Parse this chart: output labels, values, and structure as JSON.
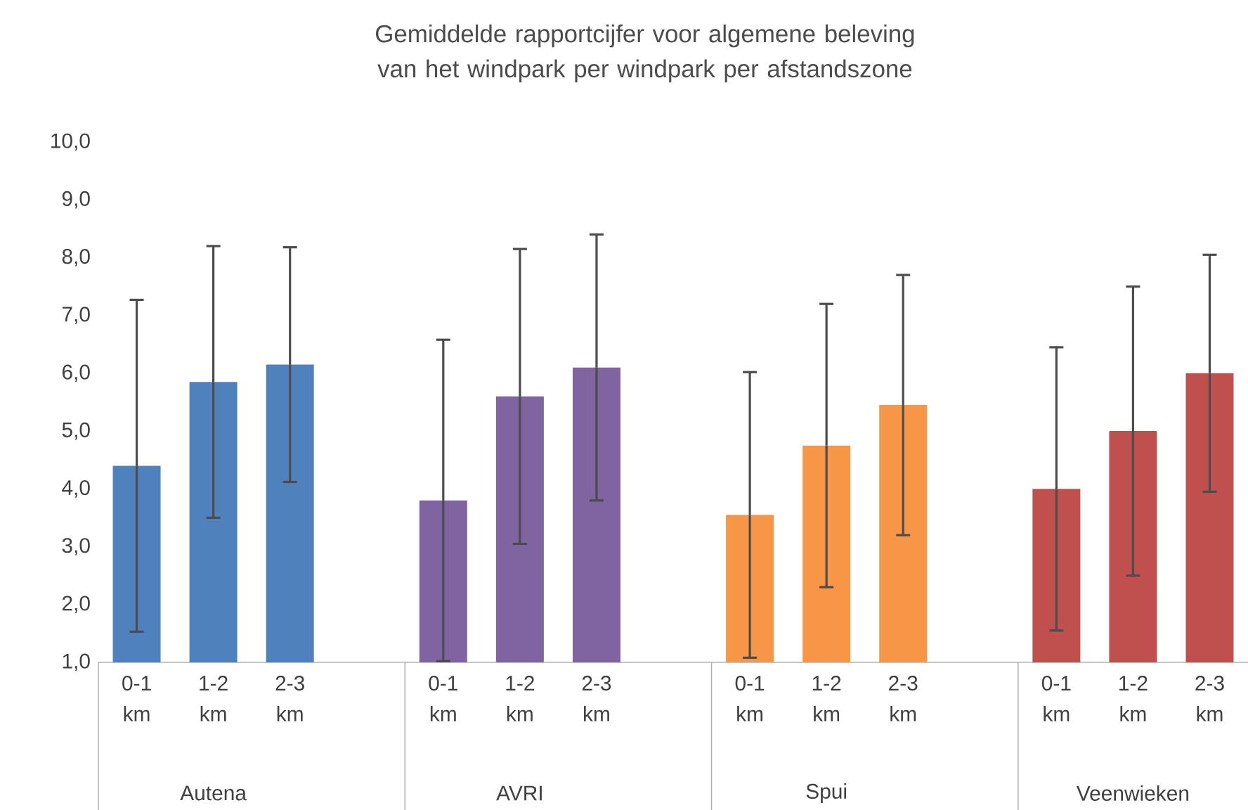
{
  "chart_data": {
    "type": "bar",
    "title": "Gemiddelde rapportcijfer voor algemene beleving van het windpark per windpark per afstandszone",
    "categories": [
      "0-1 km",
      "1-2 km",
      "2-3 km",
      null,
      "0-1 km",
      "1-2 km",
      "2-3 km",
      null,
      "0-1 km",
      "1-2 km",
      "2-3 km",
      null,
      "0-1 km",
      "1-2 km",
      "2-3 km"
    ],
    "series": [
      {
        "color": "#4f81bd",
        "values": [
          4.4,
          5.85,
          6.15,
          null,
          null,
          null,
          null,
          null,
          null,
          null,
          null,
          null,
          null,
          null,
          null
        ],
        "errors": [
          2.87,
          2.35,
          2.03,
          null,
          null,
          null,
          null,
          null,
          null,
          null,
          null,
          null,
          null,
          null,
          null
        ]
      },
      {
        "color": "#8064a2",
        "values": [
          null,
          null,
          null,
          null,
          3.8,
          5.6,
          6.1,
          null,
          null,
          null,
          null,
          null,
          null,
          null,
          null
        ],
        "errors": [
          null,
          null,
          null,
          null,
          2.78,
          2.55,
          2.3,
          null,
          null,
          null,
          null,
          null,
          null,
          null,
          null
        ]
      },
      {
        "color": "#f79646",
        "values": [
          null,
          null,
          null,
          null,
          null,
          null,
          null,
          null,
          3.55,
          4.75,
          5.45,
          null,
          null,
          null,
          null
        ],
        "errors": [
          null,
          null,
          null,
          null,
          null,
          null,
          null,
          null,
          2.47,
          2.45,
          2.25,
          null,
          null,
          null,
          null
        ]
      },
      {
        "color": "#c0504d",
        "values": [
          null,
          null,
          null,
          null,
          null,
          null,
          null,
          null,
          null,
          null,
          null,
          null,
          4.0,
          5.0,
          6.0
        ],
        "errors": [
          null,
          null,
          null,
          null,
          null,
          null,
          null,
          null,
          null,
          null,
          null,
          null,
          2.45,
          2.5,
          2.05
        ]
      }
    ],
    "annotations": [
      "Autena",
      "AVRI",
      "Spui",
      "Veenwieken"
    ],
    "ylim": [
      1,
      10
    ],
    "yticks": [
      {
        "value": 1,
        "label": "1,0"
      },
      {
        "value": 2,
        "label": "2,0"
      },
      {
        "value": 3,
        "label": "3,0"
      },
      {
        "value": 4,
        "label": "4,0"
      },
      {
        "value": 5,
        "label": "5,0"
      },
      {
        "value": 6,
        "label": "6,0"
      },
      {
        "value": 7,
        "label": "7,0"
      },
      {
        "value": 8,
        "label": "8,0"
      },
      {
        "value": 9,
        "label": "9,0"
      },
      {
        "value": 10,
        "label": "10,0"
      }
    ]
  }
}
